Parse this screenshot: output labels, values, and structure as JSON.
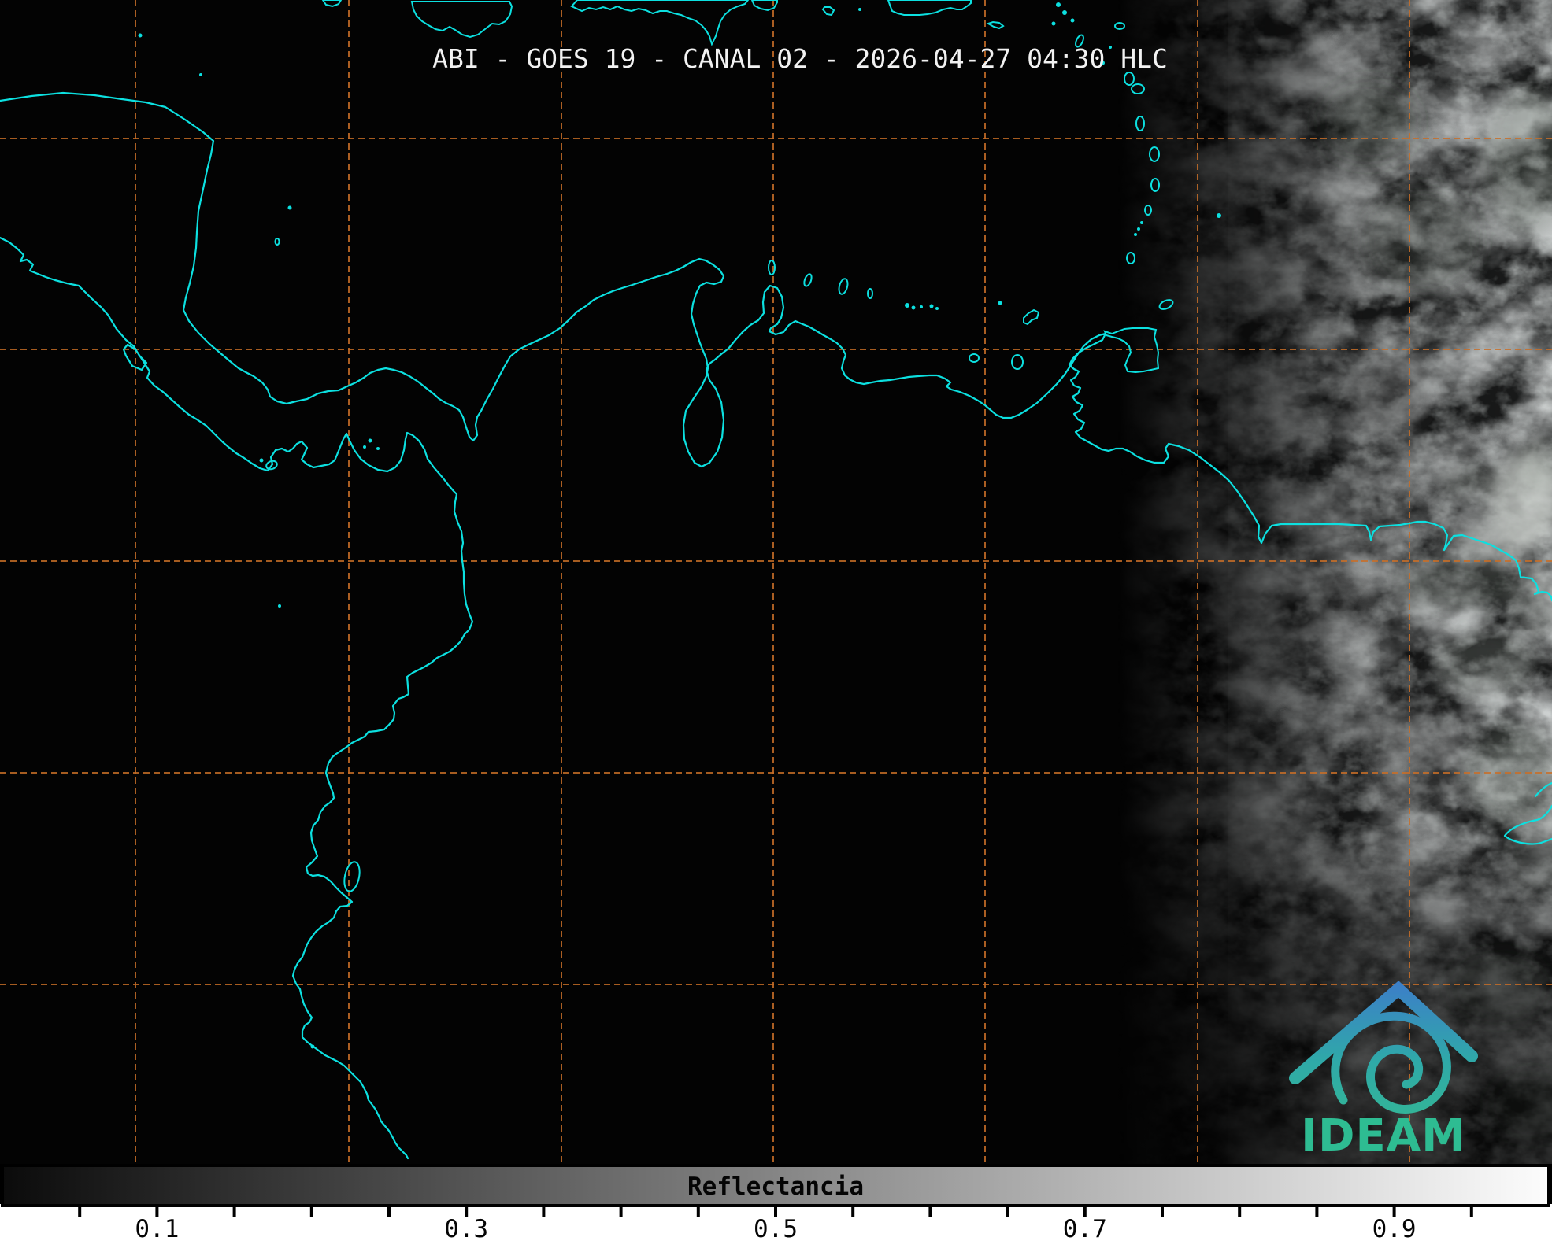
{
  "title": "ABI - GOES 19 - CANAL 02 - 2026-04-27 04:30 HLC",
  "map": {
    "background_color": "#030303",
    "coastline_color": "#0ce0e0",
    "grid_color": "#c96f28",
    "cloud_region": "daylit clouds along right (eastern) edge of scene"
  },
  "colorbar": {
    "label": "Reflectancia",
    "min": 0,
    "max": 1,
    "tick_interval": 0.05,
    "labeled_ticks": [
      "0.1",
      "0.3",
      "0.5",
      "0.7",
      "0.9"
    ],
    "gradient_start": "#0b0b0b",
    "gradient_end": "#fcfcfc"
  },
  "logo": {
    "text": "IDEAM",
    "roof_color_top": "#3c7fc8",
    "roof_color_bottom": "#36bd8c",
    "text_color": "#2ebc92"
  }
}
